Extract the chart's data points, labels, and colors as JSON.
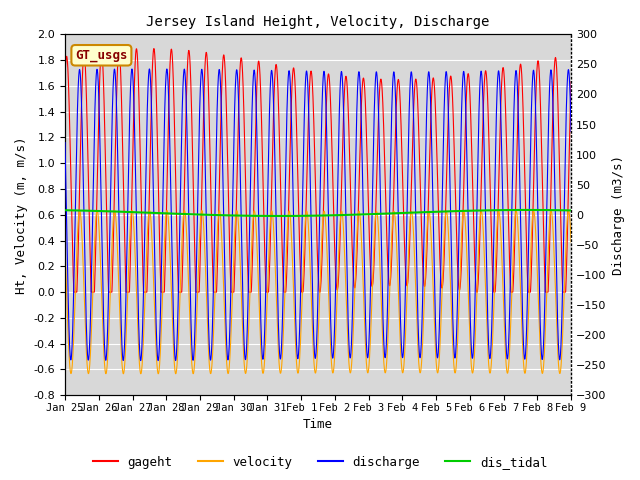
{
  "title": "Jersey Island Height, Velocity, Discharge",
  "xlabel": "Time",
  "ylabel_left": "Ht, Velocity (m, m/s)",
  "ylabel_right": "Discharge (m3/s)",
  "ylim_left": [
    -0.8,
    2.0
  ],
  "ylim_right": [
    -300,
    300
  ],
  "background_color": "#ffffff",
  "plot_bg_color": "#d8d8d8",
  "grid_color": "#ffffff",
  "legend_labels": [
    "gageht",
    "velocity",
    "discharge",
    "dis_tidal"
  ],
  "legend_colors": [
    "#ff0000",
    "#ffa500",
    "#0000ff",
    "#00cc00"
  ],
  "annotation_text": "GT_usgs",
  "annotation_bg": "#ffffcc",
  "annotation_border": "#cc8800",
  "annotation_text_color": "#880000",
  "xtick_labels": [
    "Jan 25",
    "Jan 26",
    "Jan 27",
    "Jan 28",
    "Jan 29",
    "Jan 30",
    "Jan 31",
    "Feb 1",
    "Feb 2",
    "Feb 3",
    "Feb 4",
    "Feb 5",
    "Feb 6",
    "Feb 7",
    "Feb 8",
    "Feb 9"
  ],
  "xtick_positions": [
    0,
    1,
    2,
    3,
    4,
    5,
    6,
    7,
    8,
    9,
    10,
    11,
    12,
    13,
    14,
    15
  ],
  "yticks_left": [
    -0.8,
    -0.6,
    -0.4,
    -0.2,
    0.0,
    0.2,
    0.4,
    0.6,
    0.8,
    1.0,
    1.2,
    1.4,
    1.6,
    1.8,
    2.0
  ],
  "yticks_right": [
    -300,
    -250,
    -200,
    -150,
    -100,
    -50,
    0,
    50,
    100,
    150,
    200,
    250,
    300
  ]
}
